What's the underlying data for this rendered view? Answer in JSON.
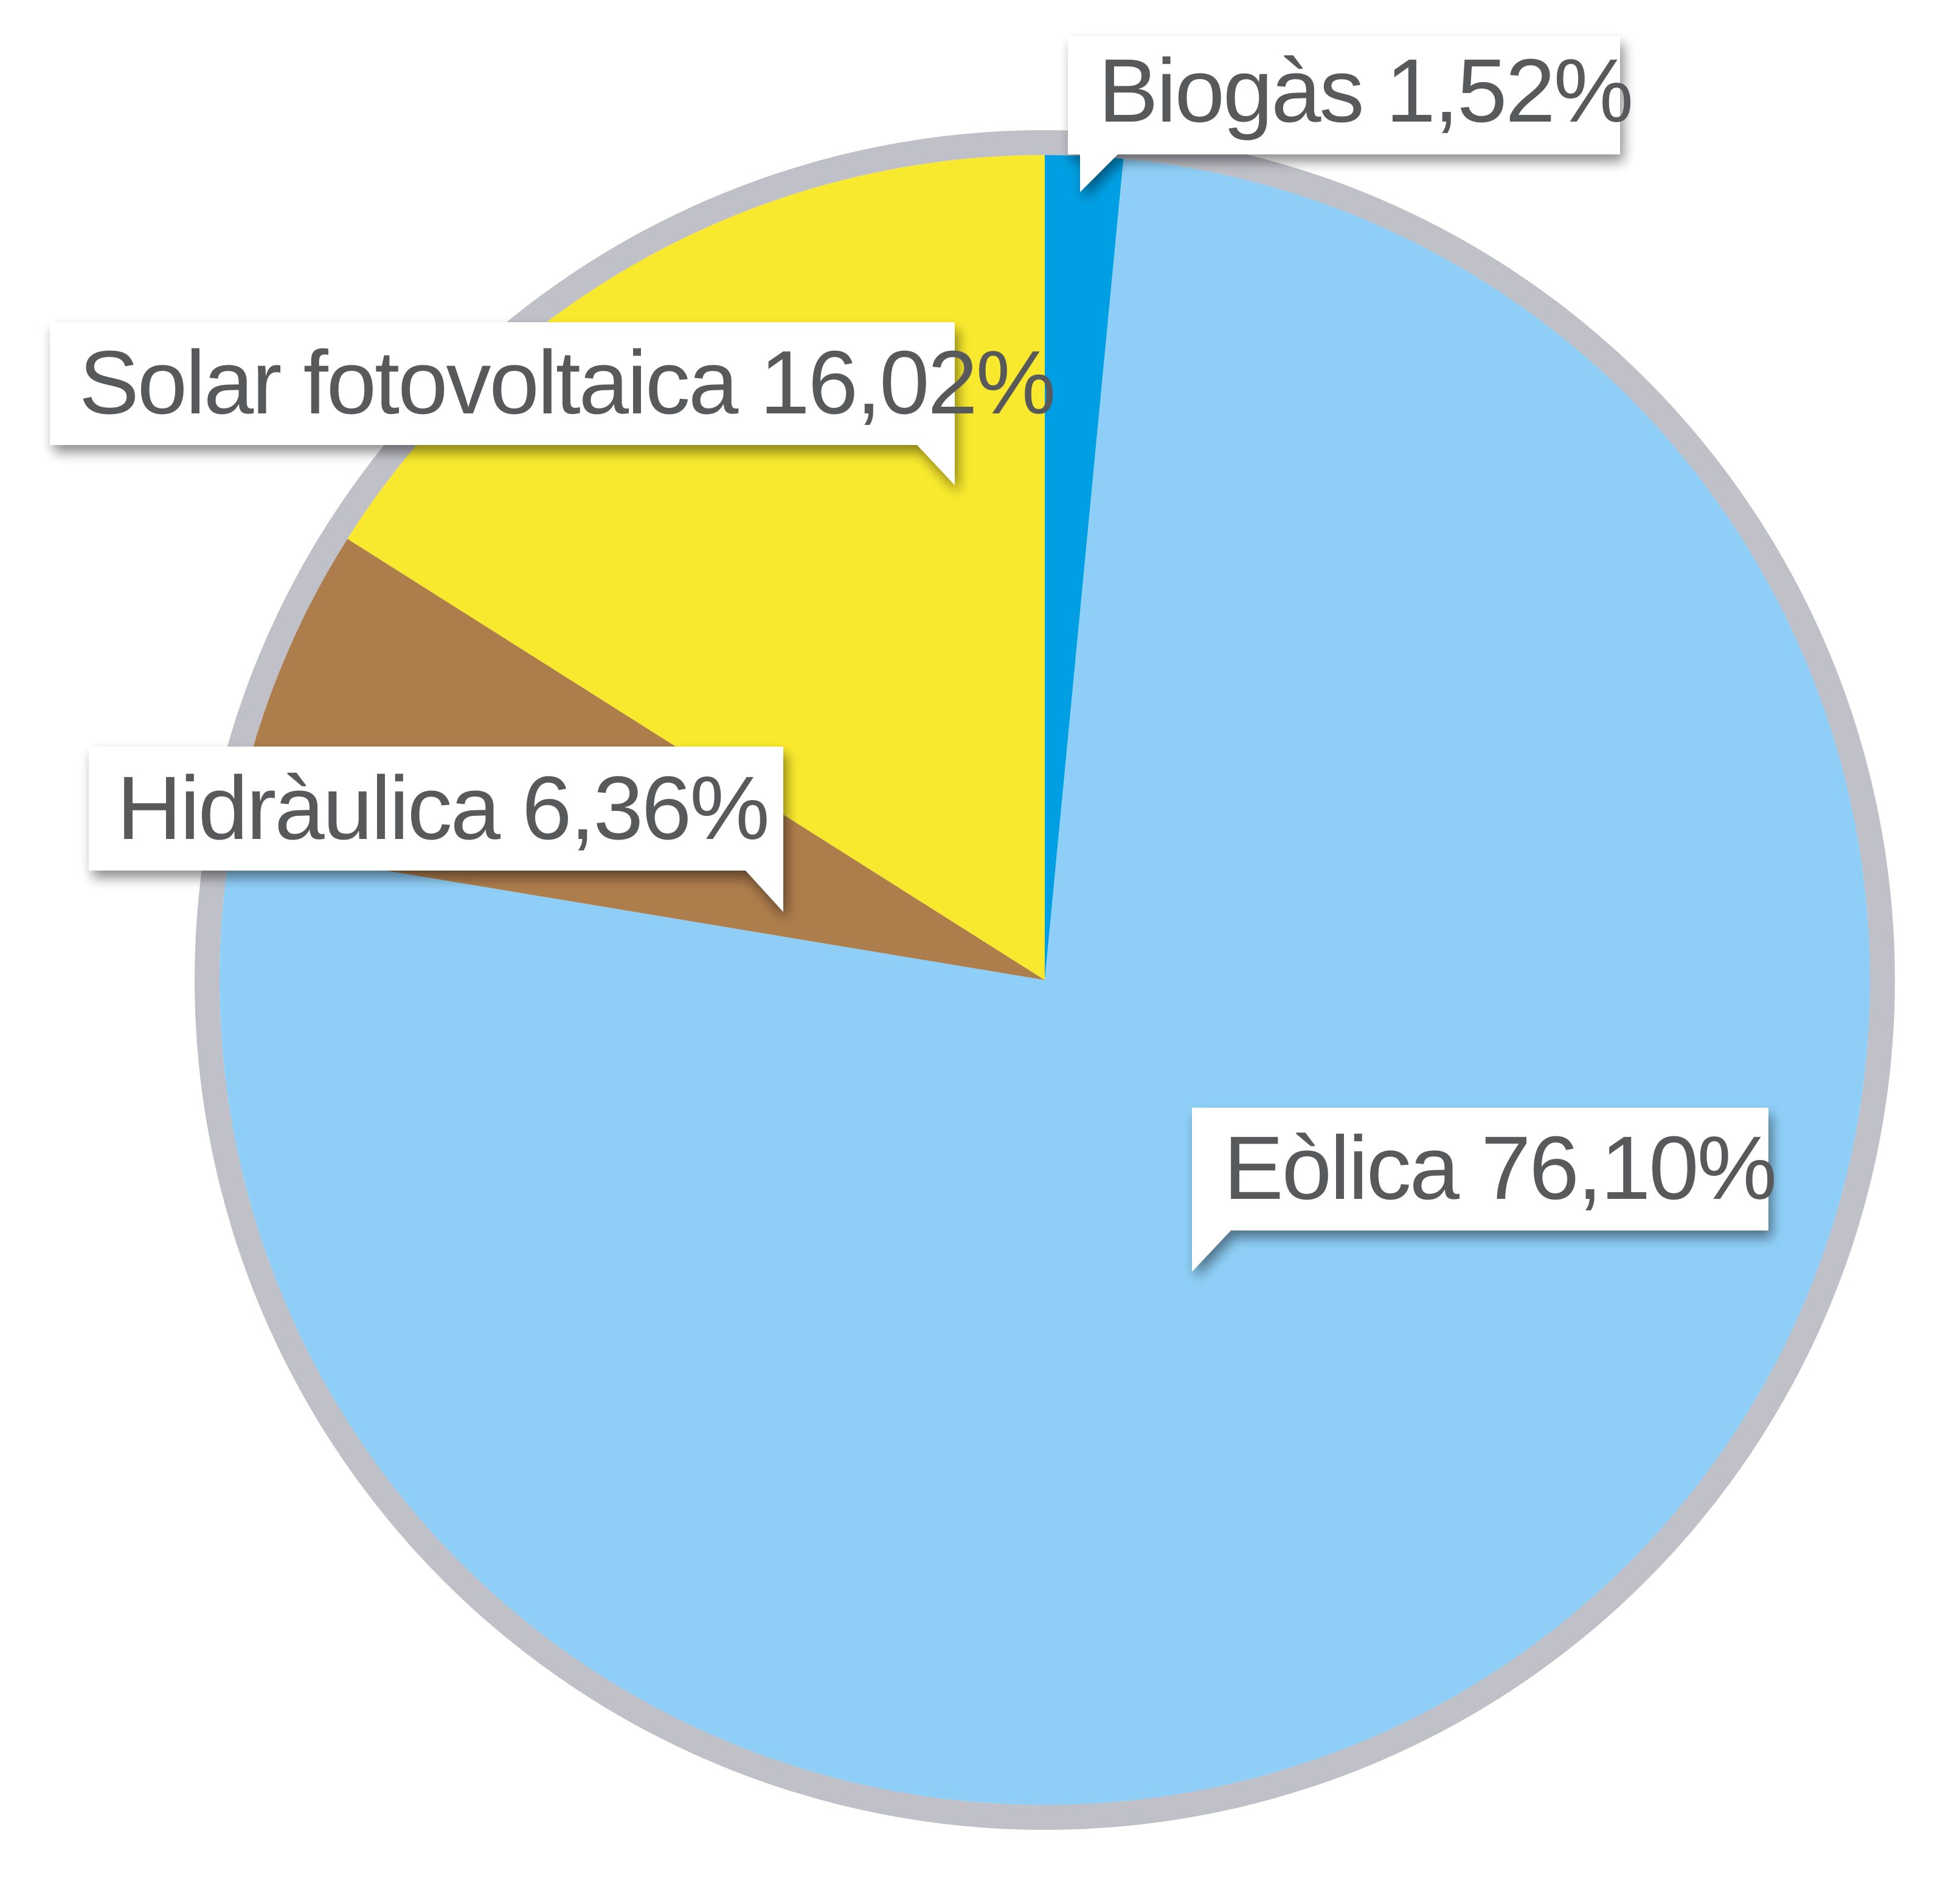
{
  "chart_data": {
    "type": "pie",
    "slices": [
      {
        "label": "Biogàs 1,52%",
        "value": 1.52,
        "color": "#009fe3"
      },
      {
        "label": "Eòlica 76,10%",
        "value": 76.1,
        "color": "#8fcff7"
      },
      {
        "label": "Hidràulica 6,36%",
        "value": 6.36,
        "color": "#ad7d4c"
      },
      {
        "label": "Solar fotovoltaica 16,02%",
        "value": 16.02,
        "color": "#f9e92e"
      }
    ],
    "ring_color": "#c0c1c8",
    "start": "top",
    "direction": "clockwise",
    "legend": "callouts"
  }
}
